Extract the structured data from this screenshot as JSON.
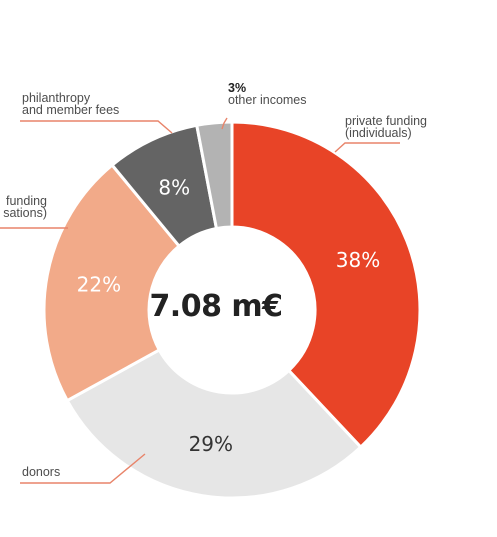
{
  "chart_data": {
    "type": "pie",
    "center_label": "7.08 m€",
    "slices": [
      {
        "value": 38,
        "value_label": "38%",
        "label_lines": [
          "private funding",
          "(individuals)"
        ],
        "color": "#e84427",
        "text_color": "#ffffff"
      },
      {
        "value": 29,
        "value_label": "29%",
        "label_lines": [
          "donors"
        ],
        "color": "#e6e6e6",
        "text_color": "#333333"
      },
      {
        "value": 22,
        "value_label": "22%",
        "label_lines": [
          "funding",
          "sations)"
        ],
        "color": "#f2aa89",
        "text_color": "#ffffff"
      },
      {
        "value": 8,
        "value_label": "8%",
        "label_lines": [
          "philanthropy",
          "and member fees"
        ],
        "color": "#646464",
        "text_color": "#ffffff"
      },
      {
        "value": 3,
        "value_label": "3%",
        "label_lines": [
          "other incomes"
        ],
        "color": "#b3b3b3",
        "text_color": "#333333"
      }
    ],
    "colors": {
      "leader_line": "#e8846a",
      "annotation_text": "#4d4d4d"
    }
  }
}
